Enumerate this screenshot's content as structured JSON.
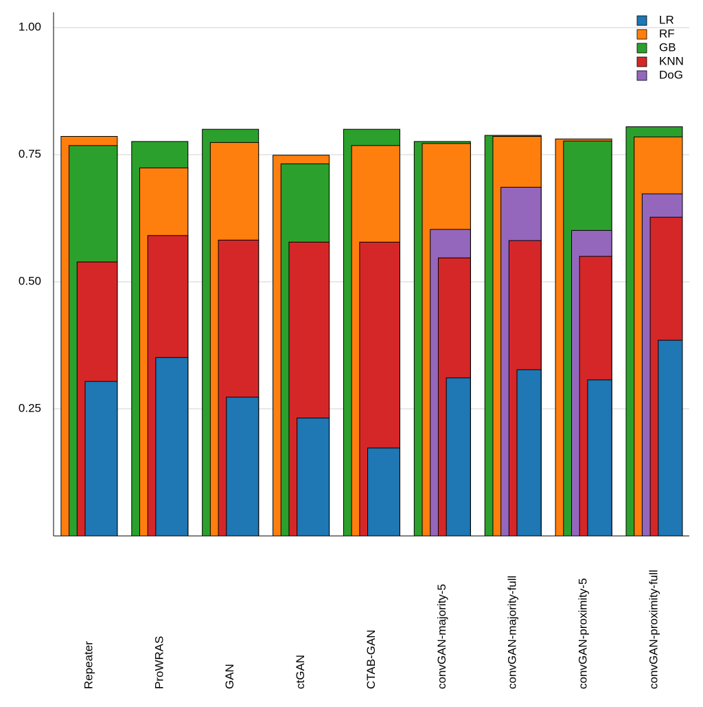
{
  "chart_data": {
    "type": "overlapping-bar",
    "categories": [
      "Repeater",
      "ProWRAS",
      "GAN",
      "ctGAN",
      "CTAB-GAN",
      "convGAN-majority-5",
      "convGAN-majority-full",
      "convGAN-proximity-5",
      "convGAN-proximity-full"
    ],
    "series": [
      {
        "name": "LR",
        "color": "#1f77b4",
        "values": [
          0.304,
          0.351,
          0.273,
          0.232,
          0.173,
          0.311,
          0.327,
          0.307,
          0.385
        ]
      },
      {
        "name": "RF",
        "color": "#ff7f0e",
        "values": [
          0.786,
          0.724,
          0.774,
          0.749,
          0.768,
          0.772,
          0.786,
          0.781,
          0.785
        ]
      },
      {
        "name": "GB",
        "color": "#2ca02c",
        "values": [
          0.768,
          0.776,
          0.8,
          0.732,
          0.8,
          0.776,
          0.788,
          0.777,
          0.805
        ]
      },
      {
        "name": "KNN",
        "color": "#d62728",
        "values": [
          0.539,
          0.591,
          0.582,
          0.578,
          0.578,
          0.547,
          0.581,
          0.55,
          0.627
        ]
      },
      {
        "name": "DoG",
        "color": "#9467bd",
        "values": [
          null,
          null,
          null,
          null,
          null,
          0.603,
          0.686,
          0.601,
          0.673
        ]
      }
    ],
    "ylim": [
      0,
      1.03
    ],
    "yticks": [
      0.25,
      {
        "value": 0.5,
        "label": "0.50"
      },
      0.75,
      {
        "value": 1,
        "label": "1.00"
      }
    ],
    "grid": true,
    "legend": "upper-right"
  }
}
